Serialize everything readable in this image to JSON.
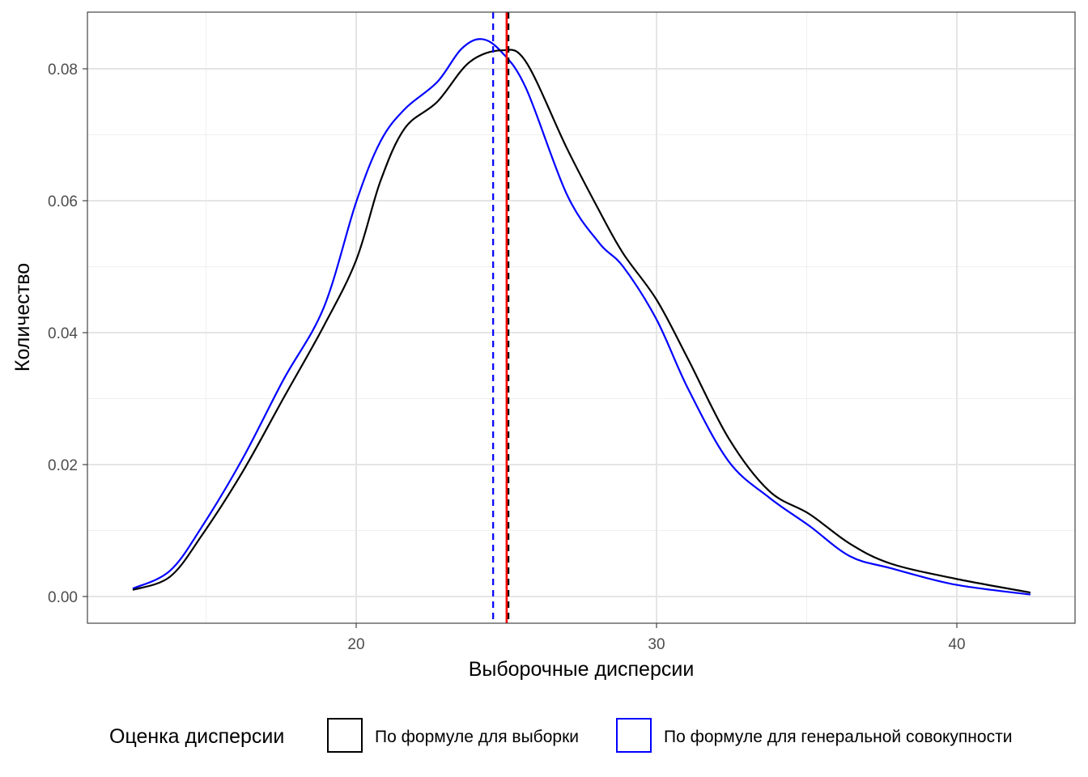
{
  "chart_data": {
    "type": "line",
    "title": "",
    "xlabel": "Выборочные дисперсии",
    "ylabel": "Количество",
    "xlim": [
      11,
      44
    ],
    "ylim": [
      -0.0041,
      0.0873
    ],
    "xticks": [
      20,
      30,
      40
    ],
    "xtick_labels": [
      "20",
      "30",
      "40"
    ],
    "yticks": [
      0,
      0.02,
      0.04,
      0.06,
      0.08
    ],
    "ytick_labels": [
      "0.00",
      "0.02",
      "0.04",
      "0.06",
      "0.08"
    ],
    "grid": true,
    "legend": {
      "title": "Оценка дисперсии",
      "placement": "bottom",
      "entries": [
        {
          "label": "По формуле для выборки",
          "color": "#000000"
        },
        {
          "label": "По формуле для генеральной совокупности",
          "color": "#0000ff"
        }
      ]
    },
    "series": [
      {
        "name": "По формуле для выборки",
        "color": "#000000",
        "x": [
          12.56,
          13.8,
          14.88,
          16.23,
          17.57,
          18.92,
          20,
          20.81,
          21.62,
          22.7,
          23.77,
          24.85,
          25.66,
          27.01,
          28.09,
          28.89,
          30,
          31.05,
          32.4,
          33.75,
          35.09,
          36.44,
          37.79,
          39.95,
          42.45
        ],
        "y": [
          0.001,
          0.003,
          0.0094,
          0.019,
          0.03,
          0.041,
          0.051,
          0.063,
          0.071,
          0.075,
          0.081,
          0.0828,
          0.081,
          0.068,
          0.0585,
          0.052,
          0.045,
          0.036,
          0.024,
          0.016,
          0.0125,
          0.008,
          0.005,
          0.0027,
          0.0006
        ]
      },
      {
        "name": "По формуле для генеральной совокупности",
        "color": "#0000ff",
        "x": [
          12.56,
          13.8,
          14.88,
          16.23,
          17.57,
          18.92,
          20,
          20.81,
          21.62,
          22.7,
          23.5,
          24.18,
          24.85,
          25.66,
          27.01,
          28.09,
          28.89,
          30,
          31.05,
          32.4,
          33.75,
          35.09,
          36.44,
          37.79,
          39.95,
          42.45
        ],
        "y": [
          0.0012,
          0.0039,
          0.0107,
          0.021,
          0.0328,
          0.0438,
          0.0598,
          0.069,
          0.0739,
          0.078,
          0.083,
          0.0845,
          0.0825,
          0.077,
          0.061,
          0.0536,
          0.05,
          0.042,
          0.0315,
          0.0205,
          0.015,
          0.0107,
          0.0061,
          0.0043,
          0.0018,
          0.0003
        ]
      }
    ],
    "vlines": [
      {
        "name": "mean-sample",
        "x": 25.07,
        "color": "#000000",
        "style": "dashed"
      },
      {
        "name": "mean-population",
        "x": 24.56,
        "color": "#0000ff",
        "style": "dashed"
      },
      {
        "name": "true-variance",
        "x": 25.01,
        "color": "#ff0000",
        "style": "solid"
      }
    ]
  }
}
